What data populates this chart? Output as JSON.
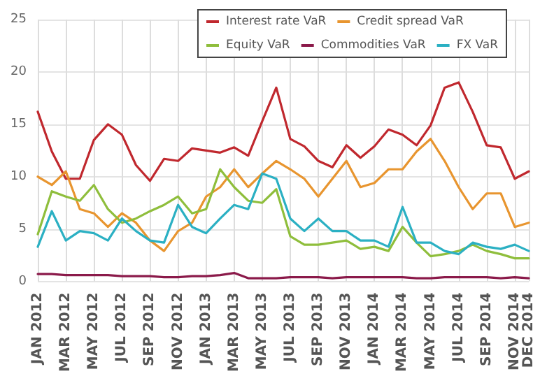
{
  "chart_data": {
    "type": "line",
    "categories": [
      "JAN 2012",
      null,
      "MAR 2012",
      null,
      "MAY 2012",
      null,
      "JUL 2012",
      null,
      "SEP 2012",
      null,
      "NOV 2012",
      null,
      "JAN 2013",
      null,
      "MAR 2013",
      null,
      "MAY 2013",
      null,
      "JUL 2013",
      null,
      "SEP 2013",
      null,
      "NOV 2013",
      null,
      "JAN 2014",
      null,
      "MAR 2014",
      null,
      "MAY 2014",
      null,
      "JUL 2014",
      null,
      "SEP 2014",
      null,
      "NOV 2014",
      "DEC 2014"
    ],
    "series": [
      {
        "name": "Interest rate VaR",
        "color": "#c0282e",
        "values": [
          16.2,
          12.4,
          9.8,
          9.8,
          13.5,
          15,
          14,
          11.1,
          9.6,
          11.7,
          11.5,
          12.7,
          12.5,
          12.3,
          12.8,
          12,
          15.3,
          18.5,
          13.6,
          12.9,
          11.5,
          10.9,
          13,
          11.8,
          12.9,
          14.5,
          14,
          13,
          14.9,
          18.5,
          19,
          16.2,
          13,
          12.8,
          9.8,
          10.5
        ]
      },
      {
        "name": "Credit spread VaR",
        "color": "#e8952f",
        "values": [
          10,
          9.2,
          10.5,
          6.9,
          6.5,
          5.2,
          6.5,
          5.6,
          3.9,
          2.9,
          4.8,
          5.6,
          8.1,
          9,
          10.7,
          9,
          10.3,
          11.5,
          10.7,
          9.8,
          8.1,
          9.8,
          11.5,
          9,
          9.4,
          10.7,
          10.7,
          12.4,
          13.6,
          11.5,
          9,
          6.9,
          8.4,
          8.4,
          5.2,
          5.6
        ]
      },
      {
        "name": "Equity VaR",
        "color": "#8fbe3c",
        "values": [
          4.5,
          8.6,
          8.1,
          7.7,
          9.2,
          6.9,
          5.6,
          6,
          6.7,
          7.3,
          8.1,
          6.5,
          6.9,
          10.7,
          9,
          7.7,
          7.5,
          8.8,
          4.3,
          3.5,
          3.5,
          3.7,
          3.9,
          3.1,
          3.3,
          2.9,
          5.2,
          3.7,
          2.4,
          2.6,
          2.9,
          3.5,
          2.9,
          2.6,
          2.2,
          2.2
        ]
      },
      {
        "name": "Commodities VaR",
        "color": "#8b1a4a",
        "values": [
          0.7,
          0.7,
          0.6,
          0.6,
          0.6,
          0.6,
          0.5,
          0.5,
          0.5,
          0.4,
          0.4,
          0.5,
          0.5,
          0.6,
          0.8,
          0.3,
          0.3,
          0.3,
          0.4,
          0.4,
          0.4,
          0.3,
          0.4,
          0.4,
          0.4,
          0.4,
          0.4,
          0.3,
          0.3,
          0.4,
          0.4,
          0.4,
          0.4,
          0.3,
          0.4,
          0.3
        ]
      },
      {
        "name": "FX VaR",
        "color": "#2bb0c3",
        "values": [
          3.3,
          6.7,
          3.9,
          4.8,
          4.6,
          3.9,
          6,
          4.8,
          3.9,
          3.7,
          7.3,
          5.2,
          4.6,
          6,
          7.3,
          6.9,
          10.3,
          9.8,
          6,
          4.8,
          6,
          4.8,
          4.8,
          3.9,
          3.9,
          3.3,
          7.1,
          3.7,
          3.7,
          2.9,
          2.6,
          3.7,
          3.3,
          3.1,
          3.5,
          2.9
        ]
      }
    ],
    "ylim": [
      0,
      25
    ],
    "yticks": [
      0,
      5,
      10,
      15,
      20,
      25
    ],
    "grid": true,
    "legend": "top right",
    "marker": "none",
    "line_style": "solid"
  }
}
